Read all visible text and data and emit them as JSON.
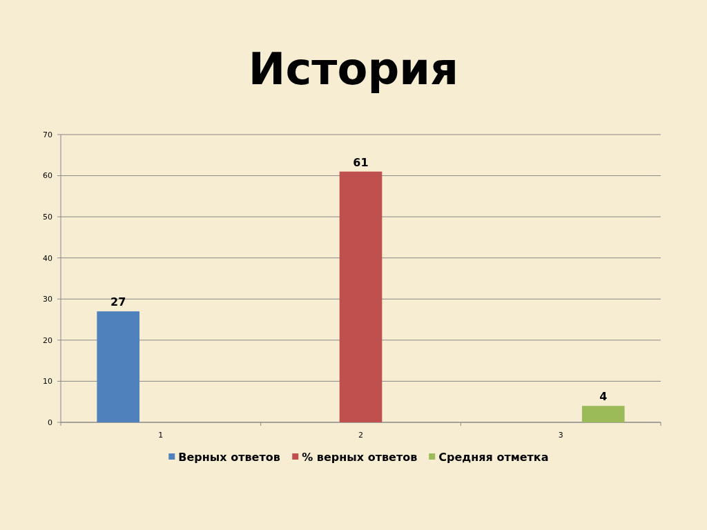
{
  "chart_data": {
    "type": "bar",
    "title": "История",
    "categories": [
      "1",
      "2",
      "3"
    ],
    "series": [
      {
        "name": "Верных ответов",
        "color": "#4f81bd",
        "values": [
          27,
          null,
          null
        ]
      },
      {
        "name": "% верных ответов",
        "color": "#c0504d",
        "values": [
          null,
          61,
          null
        ]
      },
      {
        "name": "Средняя отметка",
        "color": "#9bbb59",
        "values": [
          null,
          null,
          4
        ]
      }
    ],
    "ylim": [
      0,
      70
    ],
    "yticks": [
      0,
      10,
      20,
      30,
      40,
      50,
      60,
      70
    ],
    "grid": "y",
    "legend": "bottom",
    "data_labels": true
  }
}
